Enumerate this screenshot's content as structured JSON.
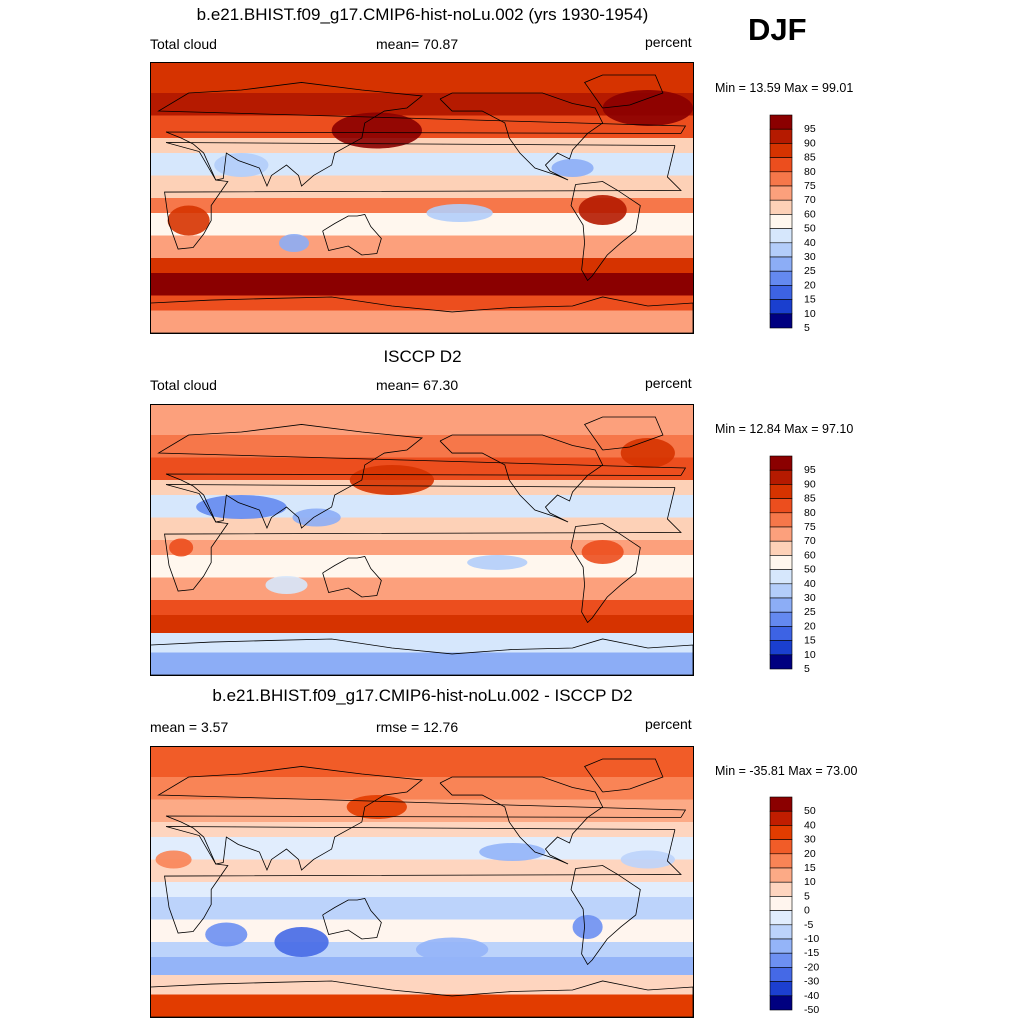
{
  "season": "DJF",
  "panels": [
    {
      "title": "b.e21.BHIST.f09_g17.CMIP6-hist-noLu.002 (yrs 1930-1954)",
      "left_label": "Total cloud",
      "center_label": "mean=  70.87",
      "right_label": "percent",
      "minmax": "Min =  13.59 Max =  99.01",
      "levels": [
        "95",
        "90",
        "85",
        "80",
        "75",
        "70",
        "60",
        "50",
        "40",
        "30",
        "25",
        "20",
        "15",
        "10",
        "5"
      ],
      "scheme": "abs"
    },
    {
      "title": "ISCCP D2",
      "left_label": "Total cloud",
      "center_label": "mean=  67.30",
      "right_label": "percent",
      "minmax": "Min =  12.84 Max =  97.10",
      "levels": [
        "95",
        "90",
        "85",
        "80",
        "75",
        "70",
        "60",
        "50",
        "40",
        "30",
        "25",
        "20",
        "15",
        "10",
        "5"
      ],
      "scheme": "abs"
    },
    {
      "title": "b.e21.BHIST.f09_g17.CMIP6-hist-noLu.002 - ISCCP D2",
      "left_label": "mean =   3.57",
      "center_label": "rmse =  12.76",
      "right_label": "percent",
      "minmax": "Min = -35.81 Max =  73.00",
      "levels": [
        "50",
        "40",
        "30",
        "20",
        "15",
        "10",
        "5",
        "0",
        "-5",
        "-10",
        "-15",
        "-20",
        "-30",
        "-40",
        "-50"
      ],
      "scheme": "diff"
    }
  ],
  "colors": {
    "abs": [
      "#8b0000",
      "#b51a00",
      "#d63300",
      "#ec4e1e",
      "#f6774a",
      "#fca07c",
      "#fdd1b7",
      "#fff7ee",
      "#d6e7fc",
      "#b3cdfa",
      "#8cadf6",
      "#6489f0",
      "#3d63e4",
      "#1a3fcf",
      "#000080"
    ],
    "diff": [
      "#8b0000",
      "#c01d00",
      "#e23c00",
      "#f15c28",
      "#f98456",
      "#fcaa86",
      "#fed5bf",
      "#fff5ee",
      "#e1edfd",
      "#bcd3fb",
      "#94b4f8",
      "#6d90f2",
      "#4569e6",
      "#1c3fd0",
      "#000080"
    ]
  }
}
